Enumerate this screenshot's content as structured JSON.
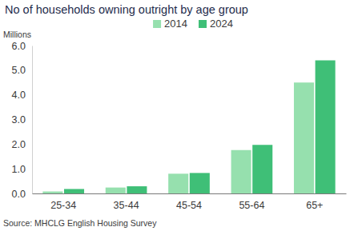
{
  "chart_data": {
    "type": "bar",
    "title": "No of households owning outright by age group",
    "y_label": "Millions",
    "source": "Source: MHCLG English Housing Survey",
    "categories": [
      "25-34",
      "35-44",
      "45-54",
      "55-64",
      "65+"
    ],
    "series": [
      {
        "name": "2014",
        "color": "#96e0ae",
        "values": [
          0.08,
          0.24,
          0.8,
          1.76,
          4.5
        ]
      },
      {
        "name": "2024",
        "color": "#3fbf77",
        "values": [
          0.18,
          0.29,
          0.83,
          1.97,
          5.4
        ]
      }
    ],
    "ylim": [
      0,
      6
    ],
    "yticks": [
      {
        "value": 0,
        "label": "0.0"
      },
      {
        "value": 1,
        "label": "1.0"
      },
      {
        "value": 2,
        "label": "2.0"
      },
      {
        "value": 3,
        "label": "3.0"
      },
      {
        "value": 4,
        "label": "4.0"
      },
      {
        "value": 5,
        "label": "5.0"
      },
      {
        "value": 6,
        "label": "6.0"
      }
    ],
    "grid": false,
    "legend": "top"
  }
}
